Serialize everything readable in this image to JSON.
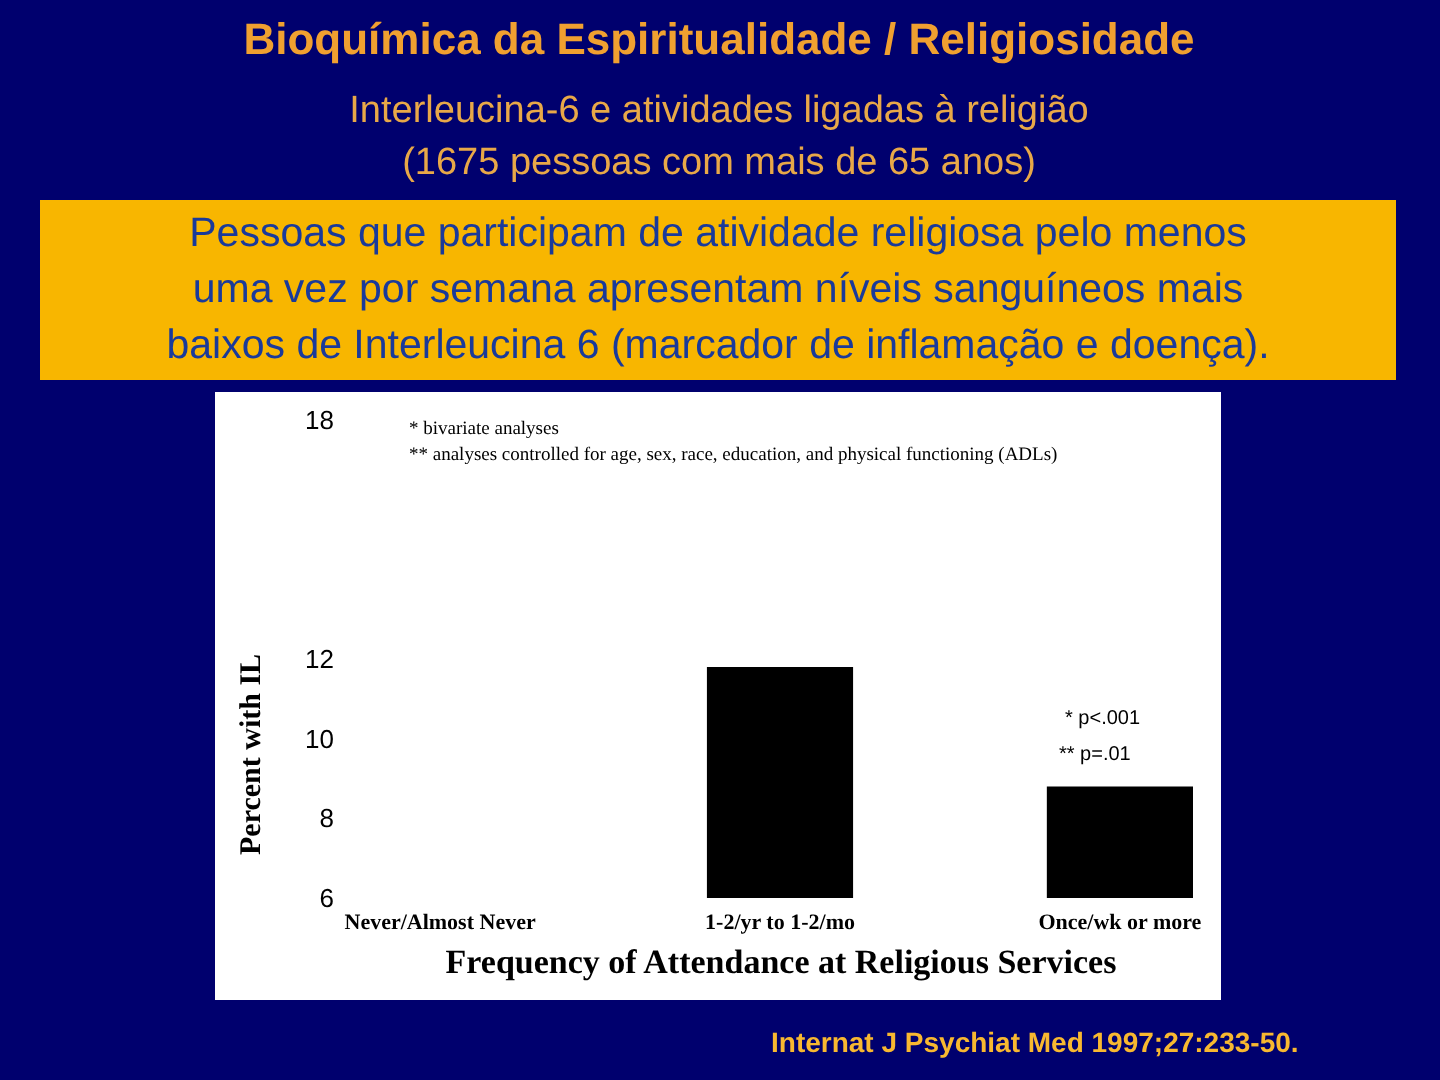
{
  "chart_data": {
    "type": "bar",
    "title": "Bioquímica da Espiritualidade / Religiosidade",
    "subtitle": "Interleucina-6 e atividades ligadas à religião\n(1675 pessoas com mais de 65 anos)",
    "xlabel": "Frequency of Attendance at Religious Services",
    "ylabel": "Percent with IL",
    "categories": [
      "Never/Almost Never",
      "1-2/yr to 1-2/mo",
      "Once/wk or more"
    ],
    "values": [
      null,
      11.8,
      8.8
    ],
    "color": "#000000",
    "ylim": [
      6,
      18
    ],
    "yticks": [
      6,
      8,
      10,
      12,
      18
    ],
    "annotations": [
      "* bivariate analyses",
      "** analyses controlled for age, sex, race, education, and physical functioning (ADLs)",
      "* p<.001",
      "** p=.01",
      "Pessoas que participam de atividade religiosa pelo menos\numa vez por semana apresentam níveis sanguíneos mais\nbaixos de Interleucina 6 (marcador de inflamação e doença).",
      "Internat J Psychiat Med 1997;27:233-50."
    ]
  }
}
